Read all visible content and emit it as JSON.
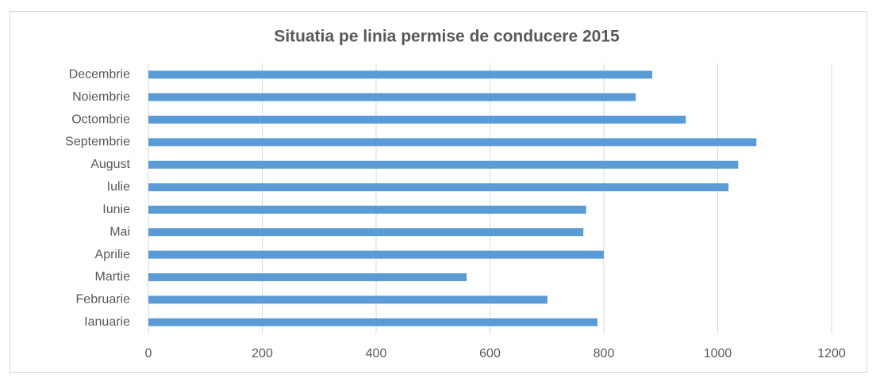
{
  "chart_data": {
    "type": "bar",
    "orientation": "horizontal",
    "title": "Situatia pe linia permise de conducere 2015",
    "categories": [
      "Ianuarie",
      "Februarie",
      "Martie",
      "Aprilie",
      "Mai",
      "Iunie",
      "Iulie",
      "August",
      "Septembrie",
      "Octombrie",
      "Noiembrie",
      "Decembrie"
    ],
    "values": [
      789,
      701,
      559,
      800,
      764,
      769,
      1019,
      1036,
      1068,
      944,
      856,
      885
    ],
    "color": "#5b9bd5",
    "xlim": [
      0,
      1200
    ],
    "xticks": [
      0,
      200,
      400,
      600,
      800,
      1000,
      1200
    ],
    "grid": true
  }
}
